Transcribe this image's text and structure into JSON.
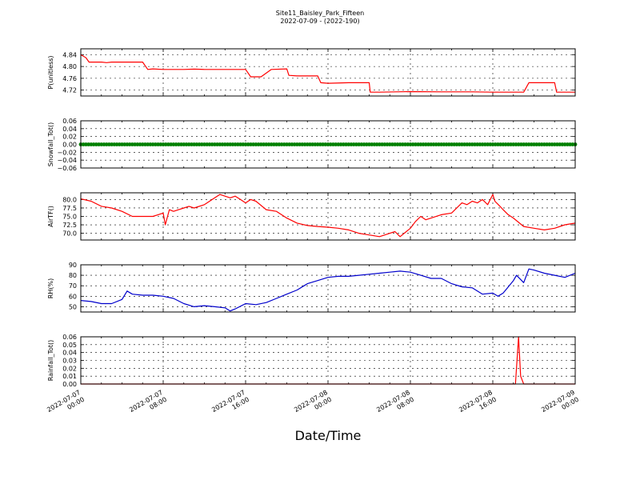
{
  "figure": {
    "title_line1": "Site11_Baisley_Park_Fifteen",
    "title_line2": "2022-07-09 - (2022-190)",
    "xlabel": "Date/Time"
  },
  "chart_data": [
    {
      "type": "line",
      "ylabel": "P(unitless)",
      "ylim": [
        4.7,
        4.86
      ],
      "yticks": [
        4.72,
        4.76,
        4.8,
        4.84
      ],
      "ytick_labels": [
        "4.72",
        "4.76",
        "4.80",
        "4.84"
      ],
      "color": "#ff0000",
      "x_hours": [
        0,
        0.5,
        0.8,
        2,
        2.5,
        3,
        4,
        5,
        6,
        6.5,
        7,
        8,
        10,
        11,
        12,
        13,
        14,
        15,
        16,
        16.5,
        17.5,
        18.5,
        20,
        20.2,
        21,
        23,
        23.3,
        24,
        26,
        27,
        28,
        28.1,
        29,
        32,
        35,
        38,
        40,
        42,
        43,
        43.5,
        44,
        45,
        46,
        46.2,
        47,
        48
      ],
      "values": [
        4.84,
        4.83,
        4.815,
        4.815,
        4.813,
        4.815,
        4.815,
        4.815,
        4.815,
        4.79,
        4.792,
        4.79,
        4.79,
        4.791,
        4.79,
        4.79,
        4.79,
        4.79,
        4.79,
        4.765,
        4.765,
        4.79,
        4.792,
        4.77,
        4.768,
        4.768,
        4.745,
        4.743,
        4.745,
        4.745,
        4.745,
        4.713,
        4.713,
        4.715,
        4.714,
        4.714,
        4.713,
        4.713,
        4.713,
        4.745,
        4.745,
        4.745,
        4.745,
        4.713,
        4.713,
        4.713
      ]
    },
    {
      "type": "line",
      "ylabel": "Snowfall_Tot()",
      "ylim": [
        -0.06,
        0.06
      ],
      "yticks": [
        -0.06,
        -0.04,
        -0.02,
        0.0,
        0.02,
        0.04,
        0.06
      ],
      "ytick_labels": [
        "−0.06",
        "−0.04",
        "−0.02",
        "0.00",
        "0.02",
        "0.04",
        "0.06"
      ],
      "color": "#008000",
      "marker": true,
      "x_hours": [
        0,
        48
      ],
      "values": [
        0,
        0
      ]
    },
    {
      "type": "line",
      "ylabel": "AirTF()",
      "ylim": [
        68.0,
        82.0
      ],
      "yticks": [
        70.0,
        72.5,
        75.0,
        77.5,
        80.0
      ],
      "ytick_labels": [
        "70.0",
        "72.5",
        "75.0",
        "77.5",
        "80.0"
      ],
      "color": "#ff0000",
      "x_hours": [
        0,
        1,
        2,
        3,
        4,
        5,
        6,
        7,
        7.5,
        8,
        8.2,
        8.6,
        9,
        9.5,
        10,
        10.5,
        11,
        12,
        13,
        13.5,
        14,
        14.5,
        15,
        15.5,
        16,
        16.5,
        17,
        18,
        19,
        20,
        21,
        22,
        23,
        24,
        25,
        26,
        27,
        28,
        29,
        30,
        30.5,
        31,
        32,
        32.5,
        33,
        33.5,
        34,
        35,
        36,
        37,
        37.5,
        38,
        38.5,
        39,
        39.5,
        40,
        40.2,
        40.7,
        41,
        41.5,
        42,
        43,
        44,
        45,
        46,
        47,
        48
      ],
      "values": [
        80.2,
        79.5,
        78.0,
        77.5,
        76.5,
        75.0,
        75.0,
        75.0,
        75.5,
        76.0,
        72.5,
        77.0,
        76.5,
        77.0,
        77.5,
        78.0,
        77.5,
        78.5,
        80.5,
        81.5,
        81.0,
        80.5,
        81.0,
        80.0,
        79.0,
        80.0,
        79.5,
        77.0,
        76.5,
        74.5,
        73.0,
        72.3,
        72.0,
        71.8,
        71.5,
        71.0,
        70.0,
        69.5,
        69.0,
        70.0,
        70.5,
        69.0,
        71.5,
        73.5,
        75.0,
        74.0,
        74.5,
        75.5,
        76.0,
        79.0,
        78.5,
        79.5,
        79.0,
        80.0,
        78.5,
        81.5,
        79.5,
        78.0,
        77.0,
        75.5,
        74.5,
        72.0,
        71.5,
        71.0,
        71.5,
        72.5,
        73.0
      ]
    },
    {
      "type": "line",
      "ylabel": "RH(%)",
      "ylim": [
        45,
        90
      ],
      "yticks": [
        50,
        60,
        70,
        80,
        90
      ],
      "ytick_labels": [
        "50",
        "60",
        "70",
        "80",
        "90"
      ],
      "color": "#0000cc",
      "x_hours": [
        0,
        1,
        2,
        3,
        4,
        4.5,
        5,
        6,
        7,
        8,
        9,
        10,
        11,
        12,
        13,
        14,
        14.5,
        15,
        16,
        17,
        18,
        19,
        20,
        21,
        22,
        23,
        24,
        25,
        26,
        27,
        28,
        29,
        30,
        31,
        32,
        33,
        34,
        35,
        36,
        37,
        38,
        39,
        40,
        40.5,
        41,
        42,
        42.3,
        43,
        43.5,
        44,
        45,
        46,
        47,
        48
      ],
      "values": [
        56,
        55,
        53,
        53,
        57,
        65,
        62,
        61,
        61,
        60,
        58,
        53,
        50,
        51,
        50,
        49,
        46,
        48,
        53,
        52,
        54,
        58,
        62,
        66,
        72,
        75,
        78,
        79,
        79,
        80,
        81,
        82,
        83,
        84,
        83,
        80,
        77,
        77,
        72,
        69,
        68,
        62,
        63,
        60,
        63,
        75,
        80,
        73,
        86,
        85,
        82,
        80,
        78,
        82
      ]
    },
    {
      "type": "line",
      "ylabel": "Rainfall_Tot()",
      "ylim": [
        0.0,
        0.06
      ],
      "yticks": [
        0.0,
        0.01,
        0.02,
        0.03,
        0.04,
        0.05,
        0.06
      ],
      "ytick_labels": [
        "0.00",
        "0.01",
        "0.02",
        "0.03",
        "0.04",
        "0.05",
        "0.06"
      ],
      "color": "#ff0000",
      "x_hours": [
        0,
        42.2,
        42.5,
        42.7,
        43.0,
        48
      ],
      "values": [
        0,
        0,
        0.06,
        0.01,
        0,
        0
      ]
    }
  ],
  "x_axis": {
    "tick_hours": [
      0,
      8,
      16,
      24,
      32,
      40,
      48
    ],
    "tick_labels": [
      [
        "2022-07-07",
        "00:00"
      ],
      [
        "2022-07-07",
        "08:00"
      ],
      [
        "2022-07-07",
        "16:00"
      ],
      [
        "2022-07-08",
        "00:00"
      ],
      [
        "2022-07-08",
        "08:00"
      ],
      [
        "2022-07-08",
        "16:00"
      ],
      [
        "2022-07-09",
        "00:00"
      ]
    ]
  }
}
